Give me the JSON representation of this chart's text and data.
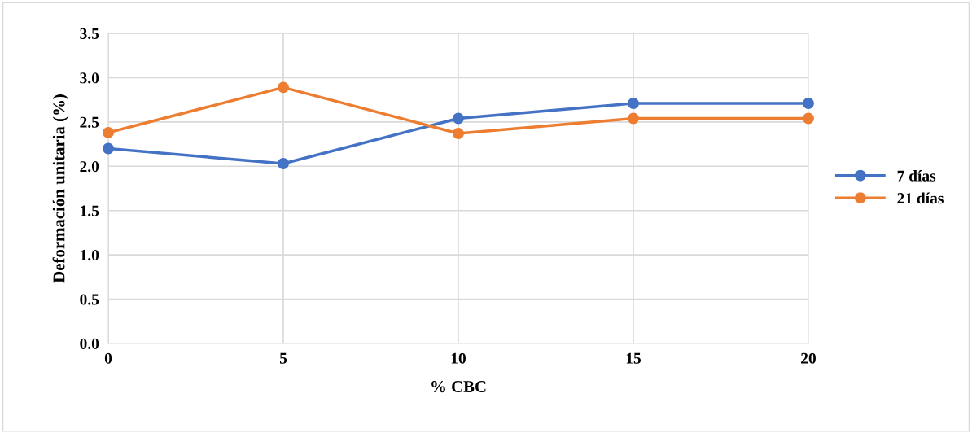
{
  "chart_data": {
    "type": "line",
    "xlabel": "% CBC",
    "ylabel": "Deformación unitaria (%)",
    "x": [
      0,
      5,
      10,
      15,
      20
    ],
    "series": [
      {
        "name": "7 días",
        "color": "#4472c4",
        "values": [
          2.2,
          2.03,
          2.54,
          2.71,
          2.71
        ]
      },
      {
        "name": "21 días",
        "color": "#ed7d31",
        "values": [
          2.38,
          2.89,
          2.37,
          2.54,
          2.54
        ]
      }
    ],
    "xlim": [
      0,
      20
    ],
    "xticks": [
      0,
      5,
      10,
      15,
      20
    ],
    "ylim": [
      0,
      3.5
    ],
    "yticks": [
      {
        "value": 0,
        "label": "0.0"
      },
      {
        "value": 0.5,
        "label": "0.5"
      },
      {
        "value": 1,
        "label": "1.0"
      },
      {
        "value": 1.5,
        "label": "1.5"
      },
      {
        "value": 2,
        "label": "2.0"
      },
      {
        "value": 2.5,
        "label": "2.5"
      },
      {
        "value": 3,
        "label": "3.0"
      },
      {
        "value": 3.5,
        "label": "3.5"
      }
    ],
    "grid": true,
    "legend": "right",
    "marker": "circle",
    "line_style": "solid"
  }
}
